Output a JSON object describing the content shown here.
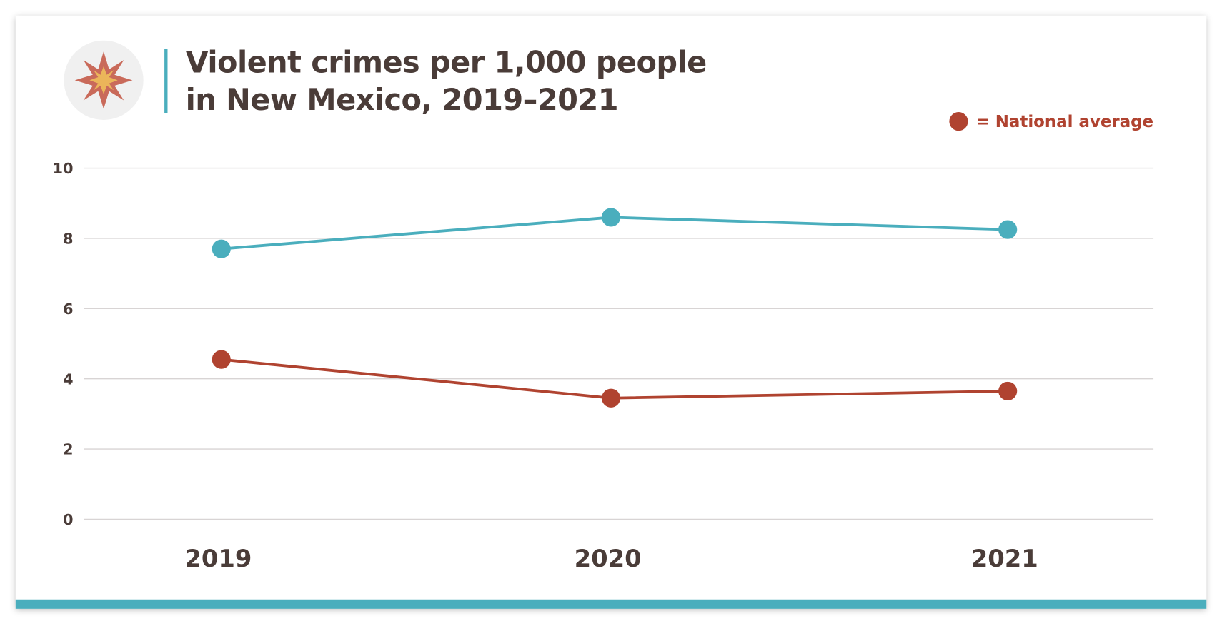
{
  "colors": {
    "ny_line": "#4aaebd",
    "national": "#b04330",
    "accent_band": "#4aaebd",
    "text": "#4a3c38",
    "grid": "#d8d4d4",
    "star_outer": "#c96a5a",
    "star_inner": "#ebb55a"
  },
  "icon": "explosion-star-icon",
  "chart_data": {
    "type": "line",
    "title": "Violent crimes per 1,000 people in New Mexico, 2019–2021",
    "title_lines": [
      "Violent crimes per 1,000 people",
      "in New Mexico, 2019–2021"
    ],
    "categories": [
      "2019",
      "2020",
      "2021"
    ],
    "ylim": [
      0,
      10
    ],
    "yticks": [
      "0",
      "2",
      "4",
      "6",
      "8",
      "10"
    ],
    "grid": true,
    "legend": {
      "placement": "top-right",
      "symbol": "●",
      "label": "= National average"
    },
    "series": [
      {
        "values": [
          7.7,
          8.6,
          8.25
        ],
        "color": "#4aaebd"
      },
      {
        "name": "National average",
        "values": [
          4.55,
          3.45,
          3.65
        ],
        "color": "#b04330"
      }
    ]
  }
}
